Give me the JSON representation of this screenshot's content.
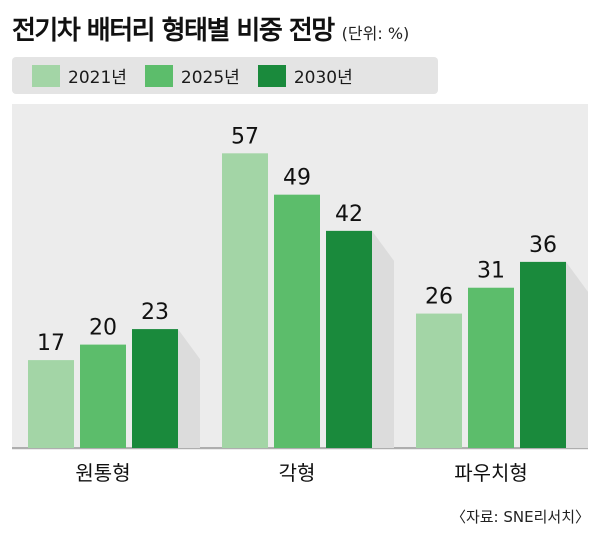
{
  "chart_data": {
    "type": "bar",
    "title": "전기차 배터리 형태별 비중 전망",
    "unit": "(단위: %)",
    "categories": [
      "원통형",
      "각형",
      "파우치형"
    ],
    "series": [
      {
        "name": "2021년",
        "color": "#a3d5a6",
        "values": [
          17,
          57,
          26
        ]
      },
      {
        "name": "2025년",
        "color": "#5cbd6b",
        "values": [
          20,
          49,
          31
        ]
      },
      {
        "name": "2030년",
        "color": "#1a8a3c",
        "values": [
          23,
          42,
          36
        ]
      }
    ],
    "ylim": [
      0,
      65
    ],
    "legend_position": "top-left",
    "grid": false,
    "source": "〈자료: SNE리서치〉"
  }
}
